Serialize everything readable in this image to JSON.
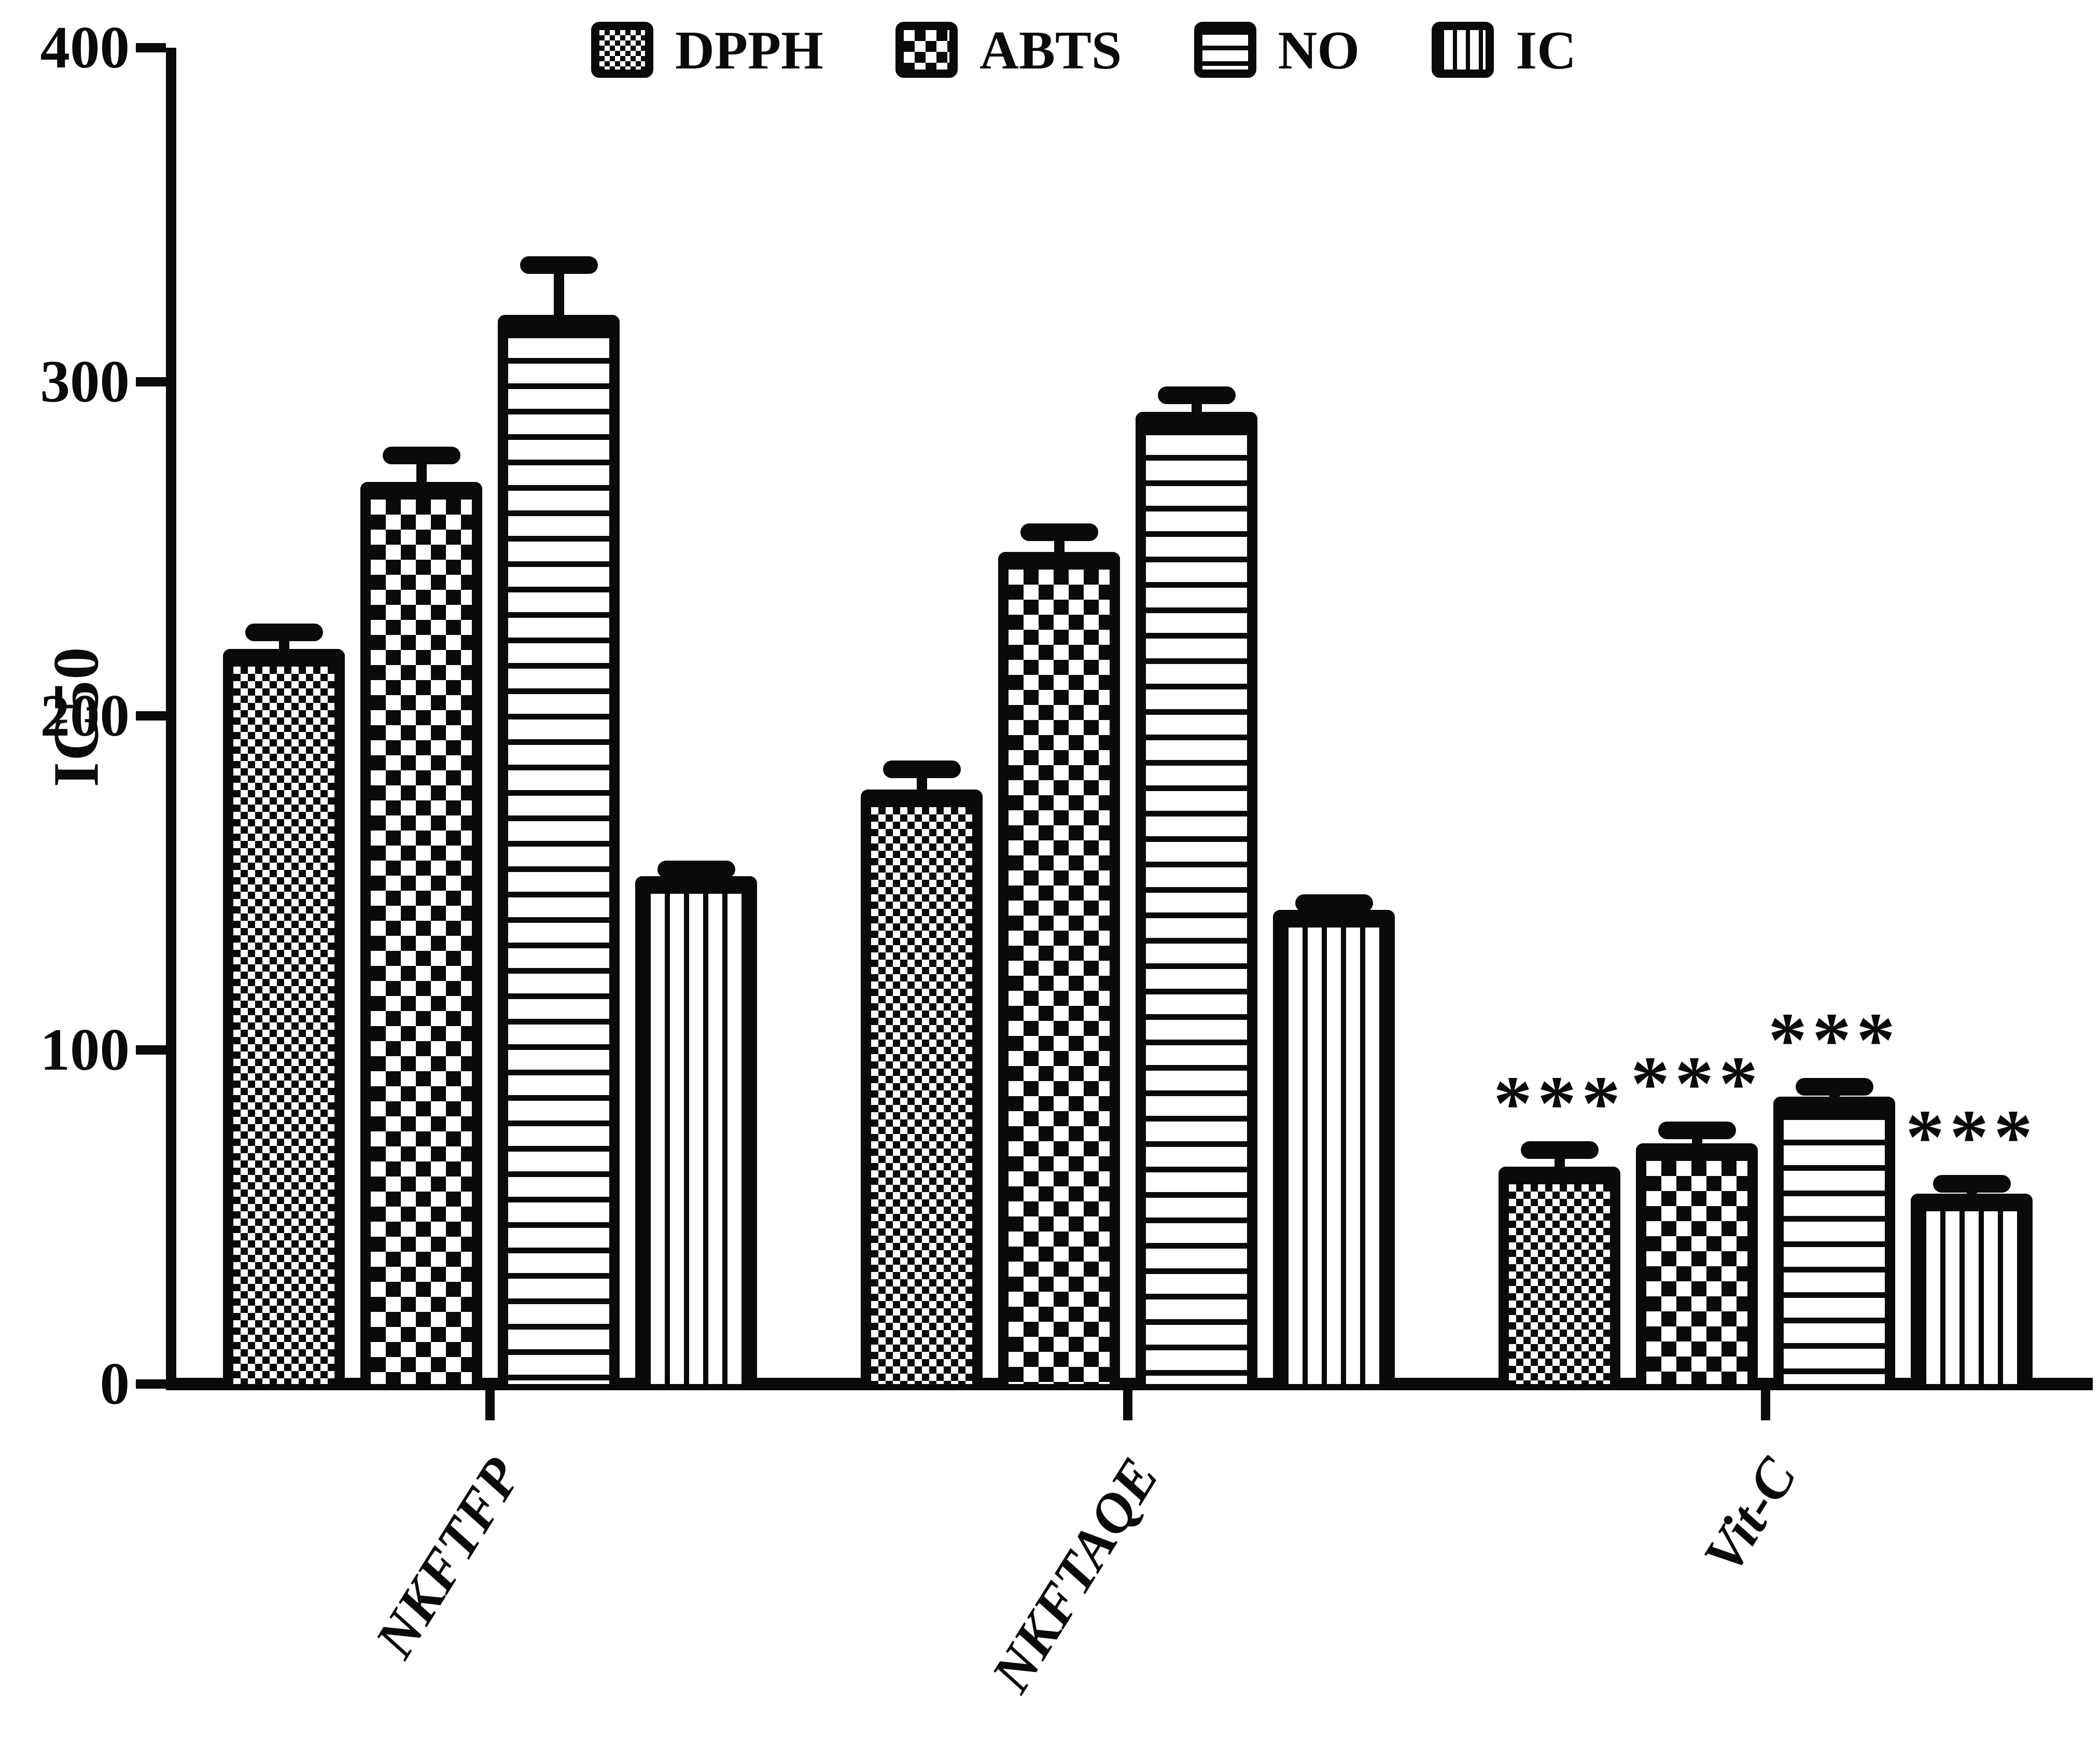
{
  "figure": {
    "background": "#ffffff",
    "ink_color": "#0a0a0a"
  },
  "chart_data": {
    "type": "bar",
    "title": "",
    "ylabel": "IC50",
    "xlabel": "",
    "ylim": [
      0,
      400
    ],
    "y_ticks": [
      0,
      100,
      200,
      300,
      400
    ],
    "grid": false,
    "legend_position": "top",
    "error_bars": "upper only, capped",
    "significance_marker": "***",
    "categories": [
      "NKFTFP",
      "NKFTAQE",
      "Vit-C"
    ],
    "series": [
      {
        "name": "DPPH",
        "pattern": "checker-fine",
        "values": [
          220,
          178,
          65
        ],
        "errors": [
          5,
          6,
          5
        ],
        "sig": [
          "",
          "",
          "***"
        ]
      },
      {
        "name": "ABTS",
        "pattern": "checker-coarse",
        "values": [
          270,
          249,
          72
        ],
        "errors": [
          8,
          6,
          4
        ],
        "sig": [
          "",
          "",
          "***"
        ]
      },
      {
        "name": "NO",
        "pattern": "hlines",
        "values": [
          320,
          291,
          86
        ],
        "errors": [
          15,
          5,
          3
        ],
        "sig": [
          "",
          "",
          "***"
        ]
      },
      {
        "name": "IC",
        "pattern": "vlines",
        "values": [
          152,
          142,
          57
        ],
        "errors": [
          2,
          2,
          3
        ],
        "sig": [
          "",
          "",
          "***"
        ]
      }
    ]
  }
}
